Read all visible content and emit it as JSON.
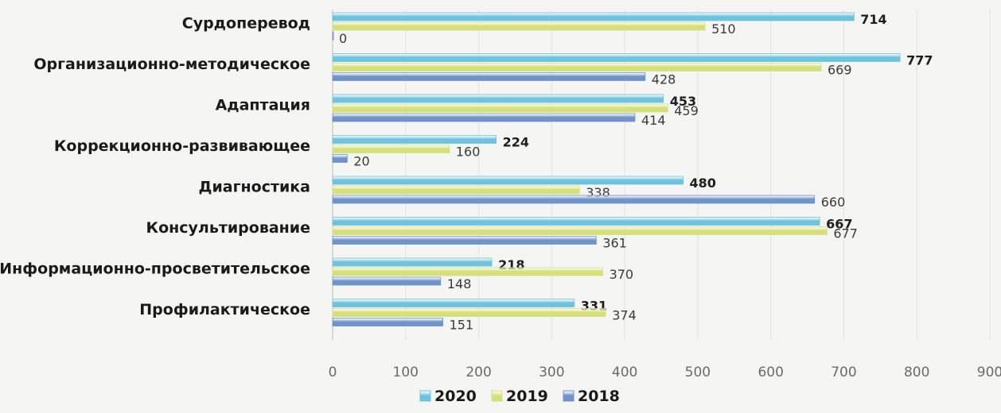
{
  "chart_data": {
    "type": "bar",
    "orientation": "horizontal",
    "title": "",
    "xlabel": "",
    "ylabel": "",
    "categories": [
      "Сурдоперевод",
      "Организационно-методическое",
      "Адаптация",
      "Коррекционно-развивающее",
      "Диагностика",
      "Консультирование",
      "Информационно-просветительское",
      "Профилактическое"
    ],
    "series": [
      {
        "name": "2020",
        "color": "#6fc3df",
        "bold_labels": true,
        "values": [
          714,
          777,
          453,
          224,
          480,
          667,
          218,
          331
        ]
      },
      {
        "name": "2019",
        "color": "#d6e07a",
        "bold_labels": false,
        "values": [
          510,
          669,
          459,
          160,
          338,
          677,
          370,
          374
        ]
      },
      {
        "name": "2018",
        "color": "#6f94c9",
        "bold_labels": false,
        "values": [
          0,
          428,
          414,
          20,
          660,
          361,
          148,
          151
        ]
      }
    ],
    "xlim": [
      0,
      900
    ],
    "xticks": [
      "0",
      "100",
      "200",
      "300",
      "400",
      "500",
      "600",
      "700",
      "800",
      "900"
    ],
    "grid": true,
    "legend_position": "bottom"
  }
}
